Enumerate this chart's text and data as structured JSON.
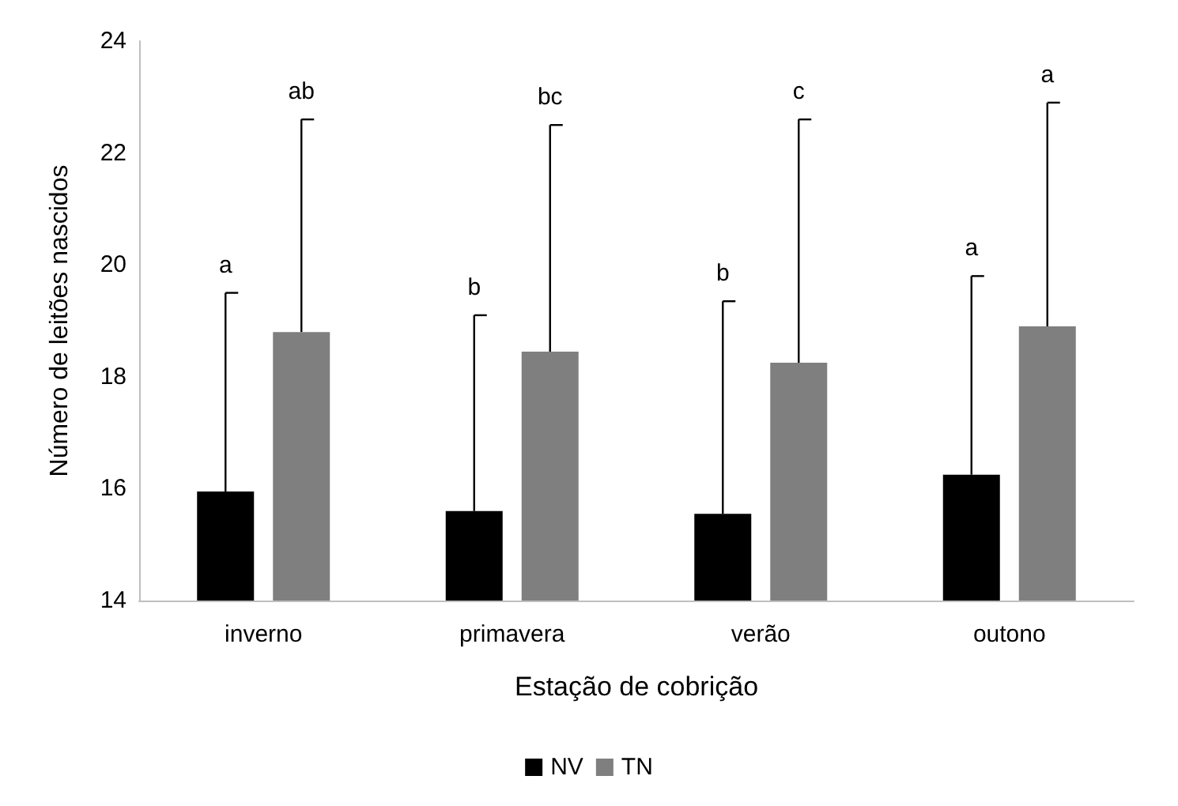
{
  "chart_data": {
    "type": "bar",
    "xlabel": "Estação de cobrição",
    "ylabel": "Número de leitões nascidos",
    "categories": [
      "inverno",
      "primavera",
      "verão",
      "outono"
    ],
    "series": [
      {
        "name": "NV",
        "color": "#000000",
        "values": [
          15.95,
          15.6,
          15.55,
          16.25
        ],
        "errors": [
          [
            15.95,
            19.5
          ],
          [
            15.6,
            19.1
          ],
          [
            15.55,
            19.35
          ],
          [
            16.25,
            19.8
          ]
        ]
      },
      {
        "name": "TN",
        "color": "#7f7f7f",
        "values": [
          18.8,
          18.45,
          18.25,
          18.9
        ],
        "errors": [
          [
            18.8,
            22.6
          ],
          [
            18.45,
            22.5
          ],
          [
            18.25,
            22.6
          ],
          [
            18.9,
            22.9
          ]
        ]
      }
    ],
    "annotations": [
      "a",
      "ab",
      "b",
      "bc",
      "b",
      "c",
      "a",
      "a"
    ],
    "ylim": [
      14,
      24
    ],
    "yticks": [
      14,
      16,
      18,
      20,
      22,
      24
    ],
    "grid": false,
    "legend": "bottom"
  }
}
